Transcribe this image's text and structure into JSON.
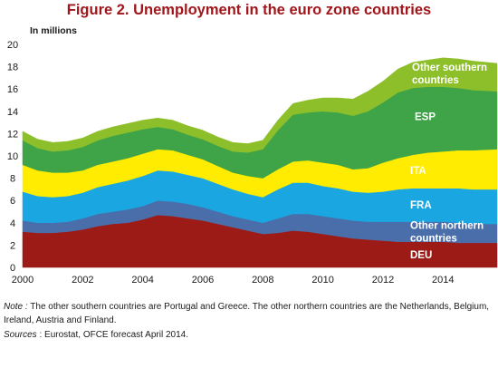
{
  "title": "Figure 2. Unemployment in the euro zone countries",
  "note": {
    "label": "Note :",
    "text": " The other southern countries are Portugal and Greece. The other northern countries are the Netherlands, Belgium, Ireland, Austria and Finland."
  },
  "sources": {
    "label": "Sources",
    "text": " : Eurostat, OFCE forecast April 2014."
  },
  "chart_data": {
    "type": "area",
    "stacked": true,
    "unit_label": "In millions",
    "ylim": [
      0,
      20
    ],
    "yticks": [
      0,
      2,
      4,
      6,
      8,
      10,
      12,
      14,
      16,
      18,
      20
    ],
    "xlim": [
      2000.0,
      2015.8
    ],
    "xticks": [
      2000,
      2002,
      2004,
      2006,
      2008,
      2010,
      2012,
      2014
    ],
    "grid": false,
    "x": [
      2000.0,
      2000.5,
      2001.0,
      2001.5,
      2002.0,
      2002.5,
      2003.0,
      2003.5,
      2004.0,
      2004.5,
      2005.0,
      2005.5,
      2006.0,
      2006.5,
      2007.0,
      2007.5,
      2008.0,
      2008.5,
      2009.0,
      2009.5,
      2010.0,
      2010.5,
      2011.0,
      2011.5,
      2012.0,
      2012.5,
      2013.0,
      2013.5,
      2014.0,
      2014.5,
      2015.0,
      2015.8
    ],
    "series": [
      {
        "name": "DEU",
        "color": "#9c1b17",
        "values": [
          3.2,
          3.1,
          3.1,
          3.2,
          3.4,
          3.7,
          3.9,
          4.0,
          4.3,
          4.7,
          4.6,
          4.4,
          4.2,
          3.9,
          3.6,
          3.3,
          3.0,
          3.1,
          3.3,
          3.2,
          3.0,
          2.8,
          2.6,
          2.5,
          2.4,
          2.3,
          2.3,
          2.3,
          2.3,
          2.2,
          2.2,
          2.2
        ]
      },
      {
        "name": "Other northern countries",
        "color": "#4a6ea9",
        "values": [
          1.0,
          0.9,
          0.9,
          0.9,
          1.0,
          1.1,
          1.1,
          1.2,
          1.2,
          1.3,
          1.3,
          1.3,
          1.2,
          1.1,
          1.0,
          1.0,
          1.0,
          1.3,
          1.5,
          1.6,
          1.6,
          1.6,
          1.6,
          1.6,
          1.7,
          1.8,
          1.8,
          1.8,
          1.8,
          1.8,
          1.7,
          1.7
        ]
      },
      {
        "name": "FRA",
        "color": "#1aa6e0",
        "values": [
          2.6,
          2.4,
          2.3,
          2.3,
          2.3,
          2.4,
          2.5,
          2.6,
          2.7,
          2.7,
          2.7,
          2.6,
          2.6,
          2.5,
          2.4,
          2.3,
          2.3,
          2.6,
          2.8,
          2.8,
          2.7,
          2.7,
          2.6,
          2.6,
          2.7,
          2.9,
          3.0,
          3.0,
          3.0,
          3.1,
          3.1,
          3.1
        ]
      },
      {
        "name": "ITA",
        "color": "#ffec00",
        "values": [
          2.4,
          2.3,
          2.2,
          2.1,
          2.0,
          2.0,
          2.0,
          2.0,
          2.0,
          1.9,
          1.9,
          1.8,
          1.7,
          1.6,
          1.5,
          1.6,
          1.7,
          1.8,
          1.9,
          2.0,
          2.1,
          2.1,
          2.0,
          2.2,
          2.6,
          2.8,
          3.0,
          3.2,
          3.3,
          3.4,
          3.5,
          3.6
        ]
      },
      {
        "name": "ESP",
        "color": "#3ea447",
        "values": [
          2.2,
          2.0,
          1.9,
          2.0,
          2.1,
          2.2,
          2.3,
          2.3,
          2.2,
          2.0,
          1.9,
          1.8,
          1.8,
          1.8,
          1.9,
          2.1,
          2.6,
          3.5,
          4.2,
          4.3,
          4.6,
          4.7,
          4.8,
          5.1,
          5.4,
          5.9,
          6.0,
          5.9,
          5.8,
          5.6,
          5.4,
          5.2
        ]
      },
      {
        "name": "Other southern countries",
        "color": "#8dbf2a",
        "values": [
          0.8,
          0.8,
          0.8,
          0.8,
          0.8,
          0.8,
          0.8,
          0.8,
          0.8,
          0.8,
          0.8,
          0.8,
          0.8,
          0.8,
          0.8,
          0.8,
          0.8,
          0.9,
          1.0,
          1.1,
          1.2,
          1.3,
          1.5,
          1.8,
          1.9,
          2.1,
          2.3,
          2.4,
          2.6,
          2.6,
          2.6,
          2.5
        ]
      }
    ]
  }
}
